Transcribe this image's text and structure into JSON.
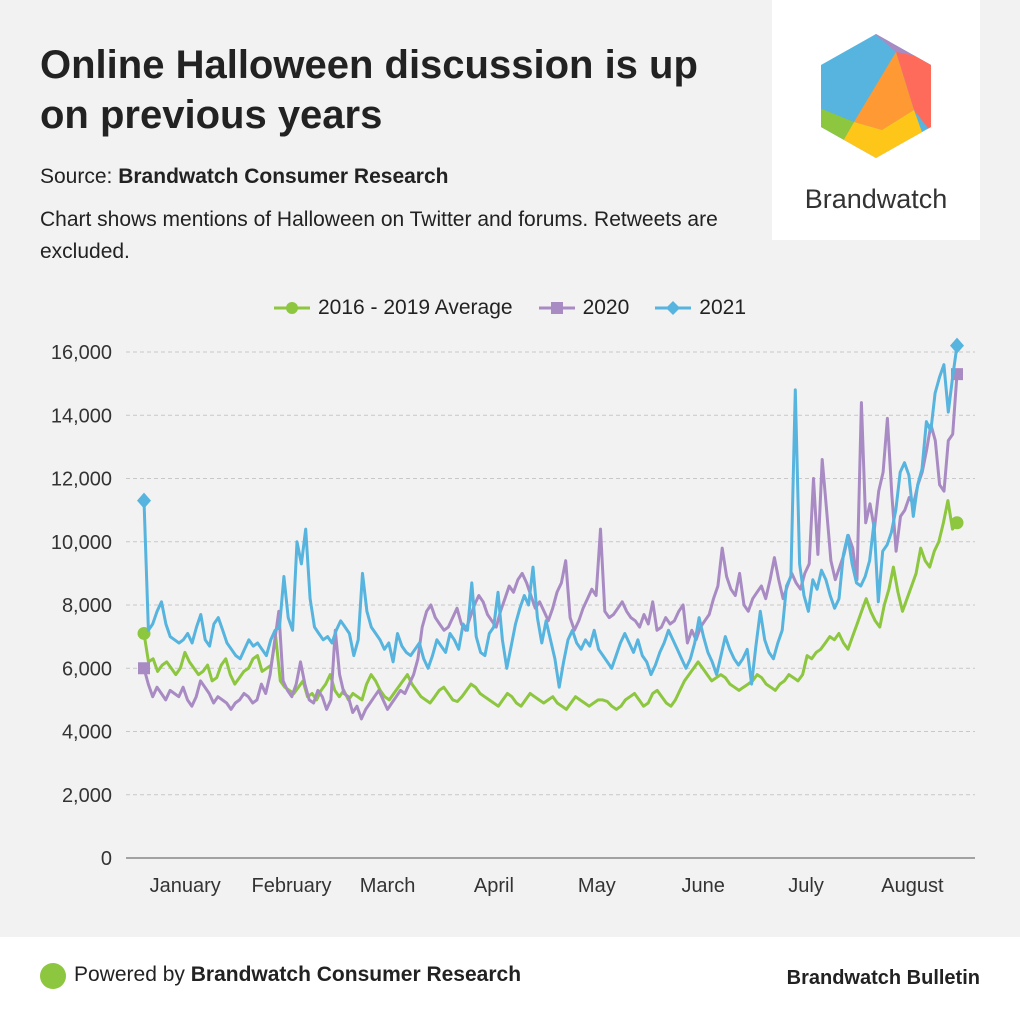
{
  "title": "Online Halloween discussion is up on previous years",
  "source_label": "Source:",
  "source_name": "Brandwatch Consumer Research",
  "description": "Chart shows mentions of Halloween on Twitter and forums. Retweets are excluded.",
  "logo_text": "Brandwatch",
  "footer": {
    "powered_label": "Powered by",
    "powered_name": "Brandwatch Consumer Research",
    "brand": "Brandwatch Bulletin"
  },
  "colors": {
    "avg": "#8dc63f",
    "y2020": "#a98bc4",
    "y2021": "#56b4de",
    "logo": [
      "#56b4de",
      "#a98bc4",
      "#ff6b5b",
      "#ff9933",
      "#ffc61a",
      "#8dc63f"
    ]
  },
  "chart_data": {
    "type": "line",
    "title": "",
    "xlabel": "",
    "ylabel": "",
    "ylim": [
      0,
      16000
    ],
    "yticks": [
      0,
      2000,
      4000,
      6000,
      8000,
      10000,
      12000,
      14000,
      16000
    ],
    "ytick_labels": [
      "0",
      "2,000",
      "4,000",
      "6,000",
      "8,000",
      "10,000",
      "12,000",
      "14,000",
      "16,000"
    ],
    "x_range": [
      "2021-01-01",
      "2021-08-26"
    ],
    "month_labels": [
      {
        "label": "January",
        "x": "2021-01-13"
      },
      {
        "label": "February",
        "x": "2021-02-13"
      },
      {
        "label": "March",
        "x": "2021-03-13"
      },
      {
        "label": "April",
        "x": "2021-04-13"
      },
      {
        "label": "May",
        "x": "2021-05-13"
      },
      {
        "label": "June",
        "x": "2021-06-13"
      },
      {
        "label": "July",
        "x": "2021-07-13"
      },
      {
        "label": "August",
        "x": "2021-08-13"
      }
    ],
    "grid": true,
    "legend_position": "top-center",
    "series": [
      {
        "name": "2016 - 2019 Average",
        "marker": "circle",
        "start": "2021-01-01",
        "end": "2021-08-26",
        "values": [
          7100,
          6200,
          6300,
          5900,
          6100,
          6200,
          6000,
          5800,
          6000,
          6500,
          6200,
          6000,
          5800,
          5900,
          6100,
          5600,
          5700,
          6100,
          6300,
          5800,
          5500,
          5700,
          5900,
          6000,
          6300,
          6400,
          5900,
          6000,
          6100,
          7000,
          5600,
          5400,
          5300,
          5200,
          5400,
          5600,
          5100,
          5200,
          5000,
          5300,
          5500,
          5800,
          5300,
          5100,
          5300,
          5000,
          5200,
          5100,
          5000,
          5500,
          5800,
          5600,
          5300,
          5100,
          5000,
          5200,
          5400,
          5600,
          5800,
          5500,
          5300,
          5100,
          5000,
          4900,
          5100,
          5300,
          5400,
          5200,
          5000,
          4950,
          5100,
          5300,
          5500,
          5400,
          5200,
          5100,
          5000,
          4900,
          4800,
          5000,
          5200,
          5100,
          4900,
          4800,
          5000,
          5200,
          5100,
          5000,
          4900,
          5000,
          5100,
          4900,
          4800,
          4700,
          4900,
          5100,
          5000,
          4900,
          4800,
          4900,
          5000,
          5000,
          4950,
          4800,
          4700,
          4800,
          5000,
          5100,
          5200,
          5000,
          4800,
          4900,
          5200,
          5300,
          5100,
          4900,
          4800,
          5000,
          5300,
          5600,
          5800,
          6000,
          6200,
          6000,
          5800,
          5600,
          5700,
          5800,
          5700,
          5500,
          5400,
          5300,
          5400,
          5500,
          5600,
          5800,
          5700,
          5500,
          5400,
          5300,
          5500,
          5600,
          5800,
          5700,
          5600,
          5800,
          6400,
          6300,
          6500,
          6600,
          6800,
          7000,
          6900,
          7100,
          6800,
          6600,
          7000,
          7400,
          7800,
          8200,
          7800,
          7500,
          7300,
          8000,
          8500,
          9200,
          8400,
          7800,
          8200,
          8600,
          9000,
          9800,
          9400,
          9200,
          9700,
          10000,
          10600,
          11300,
          10400,
          10600
        ]
      },
      {
        "name": "2020",
        "marker": "square",
        "start": "2021-01-01",
        "end": "2021-08-26",
        "values": [
          6000,
          5500,
          5100,
          5400,
          5200,
          5000,
          5300,
          5200,
          5100,
          5400,
          5000,
          4800,
          5100,
          5600,
          5400,
          5200,
          4900,
          5100,
          5000,
          4900,
          4700,
          4900,
          5000,
          5200,
          5100,
          4900,
          5000,
          5500,
          5200,
          5800,
          6800,
          7800,
          5600,
          5300,
          5100,
          5500,
          6200,
          5500,
          5000,
          4900,
          5300,
          5100,
          4700,
          5000,
          7200,
          5800,
          5200,
          5100,
          4600,
          4800,
          4400,
          4700,
          4900,
          5100,
          5300,
          5000,
          4700,
          4900,
          5100,
          5300,
          5200,
          5500,
          5800,
          6300,
          7300,
          7800,
          8000,
          7600,
          7400,
          7200,
          7300,
          7600,
          7900,
          7400,
          7200,
          7600,
          8000,
          8300,
          8100,
          7700,
          7500,
          7300,
          7800,
          8200,
          8600,
          8400,
          8800,
          9000,
          8700,
          8300,
          7900,
          8100,
          7800,
          7500,
          7900,
          8400,
          8700,
          9400,
          7600,
          7200,
          7500,
          7900,
          8200,
          8500,
          8300,
          10400,
          7800,
          7600,
          7700,
          7900,
          8100,
          7800,
          7600,
          7500,
          7300,
          7700,
          7400,
          8100,
          7200,
          7300,
          7600,
          7400,
          7500,
          7800,
          8000,
          6800,
          7200,
          6900,
          7300,
          7500,
          7700,
          8200,
          8600,
          9800,
          8900,
          8500,
          8300,
          9000,
          8000,
          7800,
          8200,
          8400,
          8600,
          8200,
          8800,
          9500,
          8800,
          8200,
          8600,
          9000,
          8700,
          8500,
          9000,
          9300,
          12000,
          9600,
          12600,
          11000,
          9400,
          8800,
          9200,
          9600,
          10200,
          9800,
          8800,
          14400,
          10600,
          11200,
          10400,
          11600,
          12200,
          13900,
          11500,
          9700,
          10800,
          11000,
          11400,
          11200,
          11800,
          12200,
          12900,
          13700,
          13200,
          11800,
          11600,
          13200,
          13400,
          15300
        ]
      },
      {
        "name": "2021",
        "marker": "diamond",
        "start": "2021-01-01",
        "end": "2021-08-26",
        "values": [
          11300,
          7200,
          7400,
          7800,
          8100,
          7400,
          7000,
          6900,
          6800,
          6900,
          7100,
          6800,
          7300,
          7700,
          6900,
          6700,
          7400,
          7600,
          7200,
          6800,
          6600,
          6400,
          6300,
          6600,
          6900,
          6700,
          6800,
          6600,
          6400,
          6900,
          7200,
          7300,
          8900,
          7600,
          7200,
          10000,
          9300,
          10400,
          8200,
          7300,
          7100,
          6900,
          7000,
          6800,
          7200,
          7500,
          7300,
          7100,
          6400,
          6900,
          9000,
          7800,
          7300,
          7100,
          6900,
          6600,
          6800,
          6200,
          7100,
          6700,
          6500,
          6400,
          6600,
          6800,
          6300,
          6000,
          6400,
          6900,
          6700,
          6500,
          7100,
          6900,
          6600,
          7400,
          7200,
          8700,
          7000,
          6500,
          6400,
          7100,
          7300,
          8400,
          6900,
          6000,
          6700,
          7400,
          7900,
          8300,
          8000,
          9200,
          7600,
          6800,
          7500,
          6900,
          6300,
          5400,
          6200,
          6900,
          7200,
          6800,
          6600,
          6900,
          6700,
          7200,
          6600,
          6400,
          6200,
          6000,
          6400,
          6800,
          7100,
          6800,
          6500,
          6900,
          6400,
          6200,
          5800,
          6100,
          6500,
          6800,
          7200,
          6900,
          6600,
          6300,
          6000,
          6300,
          6800,
          7600,
          7000,
          6500,
          6200,
          5800,
          6400,
          7000,
          6600,
          6300,
          6100,
          6300,
          6600,
          5500,
          6700,
          7800,
          6900,
          6500,
          6300,
          6800,
          7200,
          8600,
          8900,
          14800,
          9300,
          8300,
          7800,
          8800,
          8500,
          9100,
          8800,
          8300,
          7900,
          8200,
          9600,
          10200,
          9300,
          8700,
          8600,
          8900,
          9400,
          10600,
          8100,
          9700,
          9900,
          10300,
          11000,
          12200,
          12500,
          12100,
          10800,
          11800,
          12300,
          13800,
          13500,
          14700,
          15200,
          15600,
          14100,
          15200,
          16200
        ]
      }
    ]
  }
}
